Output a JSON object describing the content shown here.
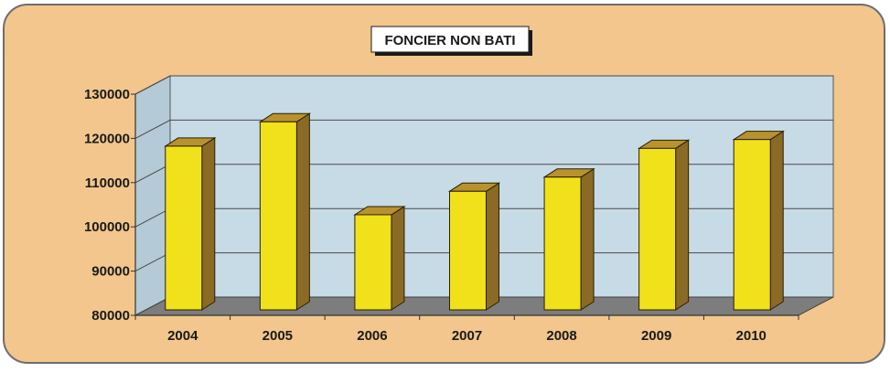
{
  "chart_data": {
    "type": "bar",
    "title": "FONCIER NON BATI",
    "categories": [
      "2004",
      "2005",
      "2006",
      "2007",
      "2008",
      "2009",
      "2010"
    ],
    "values": [
      117000,
      122500,
      101500,
      106800,
      110000,
      116500,
      118500
    ],
    "ylim": [
      80000,
      130000
    ],
    "yticks": [
      80000,
      90000,
      100000,
      110000,
      120000,
      130000
    ],
    "grid": true,
    "legend": "none",
    "colors": {
      "background": "#f2c68c",
      "frame": "#6e6e6e",
      "plot_wall": "#c6dbe6",
      "floor": "#7d7d7d",
      "bar_front": "#f1e11b",
      "bar_side": "#8a6a25",
      "bar_top": "#b8922e",
      "title_box": "#ffffff",
      "text": "#1a1a1a"
    }
  }
}
